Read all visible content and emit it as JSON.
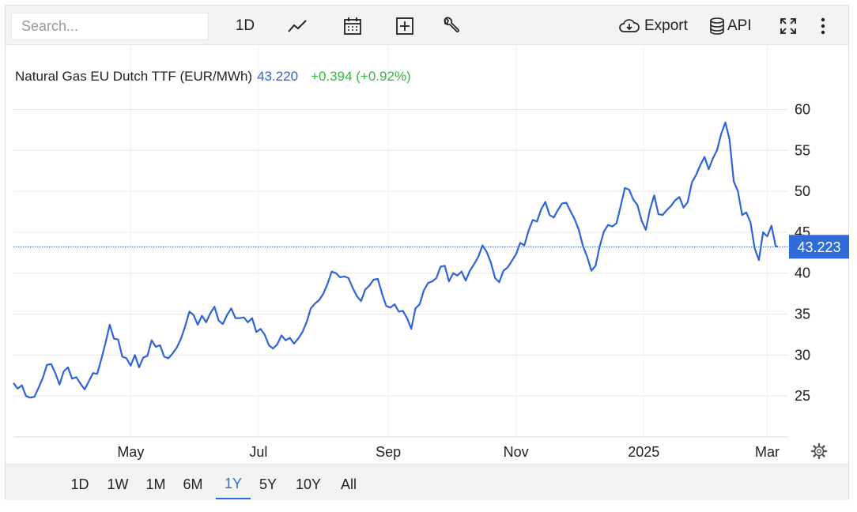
{
  "toolbar": {
    "search_placeholder": "Search...",
    "interval_label": "1D",
    "export_label": "Export",
    "api_label": "API"
  },
  "ranges": [
    "1D",
    "1W",
    "1M",
    "6M",
    "1Y",
    "5Y",
    "10Y",
    "All"
  ],
  "active_range": "1Y",
  "colors": {
    "line": "#2f64d6",
    "price": "#2f64d6",
    "change": "#39b53f",
    "badge_bg": "#2f6bd8",
    "badge_text": "#ffffff"
  },
  "icons": [
    "line-chart-icon",
    "calendar-icon",
    "plus-box-icon",
    "wrench-icon",
    "cloud-download-icon",
    "database-icon",
    "fullscreen-icon",
    "more-vertical-icon",
    "gear-icon"
  ],
  "chart_data": {
    "type": "line",
    "title": "Natural Gas EU Dutch TTF (EUR/MWh)",
    "last_value_label": "43.220",
    "change_label": "+0.394 (+0.92%)",
    "current_price_label": "43.223",
    "current_price": 43.223,
    "ylim": [
      20,
      64
    ],
    "yticks": [
      25,
      30,
      35,
      40,
      45,
      50,
      55,
      60
    ],
    "x_ticks": [
      {
        "label": "May",
        "date": "2024-05-01"
      },
      {
        "label": "Jul",
        "date": "2024-07-01"
      },
      {
        "label": "Sep",
        "date": "2024-09-01"
      },
      {
        "label": "Nov",
        "date": "2024-11-01"
      },
      {
        "label": "2025",
        "date": "2025-01-01"
      },
      {
        "label": "Mar",
        "date": "2025-03-01"
      }
    ],
    "xlim": [
      "2024-03-06",
      "2025-03-11"
    ],
    "grid": true,
    "series": [
      {
        "values": [
          [
            "2024-03-06",
            26.6
          ],
          [
            "2024-03-08",
            25.9
          ],
          [
            "2024-03-10",
            26.3
          ],
          [
            "2024-03-12",
            25.0
          ],
          [
            "2024-03-14",
            24.8
          ],
          [
            "2024-03-16",
            24.9
          ],
          [
            "2024-03-18",
            26.0
          ],
          [
            "2024-03-20",
            27.2
          ],
          [
            "2024-03-22",
            28.8
          ],
          [
            "2024-03-24",
            28.9
          ],
          [
            "2024-03-26",
            27.8
          ],
          [
            "2024-03-28",
            26.4
          ],
          [
            "2024-03-30",
            28.0
          ],
          [
            "2024-04-01",
            28.5
          ],
          [
            "2024-04-03",
            27.1
          ],
          [
            "2024-04-05",
            27.3
          ],
          [
            "2024-04-07",
            26.5
          ],
          [
            "2024-04-09",
            25.8
          ],
          [
            "2024-04-11",
            26.8
          ],
          [
            "2024-04-13",
            27.8
          ],
          [
            "2024-04-15",
            27.7
          ],
          [
            "2024-04-17",
            29.5
          ],
          [
            "2024-04-19",
            31.5
          ],
          [
            "2024-04-21",
            33.7
          ],
          [
            "2024-04-23",
            32.0
          ],
          [
            "2024-04-25",
            31.9
          ],
          [
            "2024-04-27",
            29.8
          ],
          [
            "2024-04-29",
            29.6
          ],
          [
            "2024-05-01",
            28.7
          ],
          [
            "2024-05-03",
            30.0
          ],
          [
            "2024-05-05",
            28.5
          ],
          [
            "2024-05-07",
            29.7
          ],
          [
            "2024-05-09",
            29.9
          ],
          [
            "2024-05-11",
            31.8
          ],
          [
            "2024-05-13",
            31.0
          ],
          [
            "2024-05-15",
            31.2
          ],
          [
            "2024-05-17",
            29.8
          ],
          [
            "2024-05-19",
            29.6
          ],
          [
            "2024-05-21",
            30.2
          ],
          [
            "2024-05-23",
            30.9
          ],
          [
            "2024-05-25",
            32.0
          ],
          [
            "2024-05-27",
            33.5
          ],
          [
            "2024-05-29",
            35.3
          ],
          [
            "2024-05-31",
            34.9
          ],
          [
            "2024-06-02",
            33.7
          ],
          [
            "2024-06-04",
            34.8
          ],
          [
            "2024-06-06",
            34.0
          ],
          [
            "2024-06-08",
            35.1
          ],
          [
            "2024-06-10",
            35.9
          ],
          [
            "2024-06-12",
            34.2
          ],
          [
            "2024-06-14",
            33.8
          ],
          [
            "2024-06-16",
            34.9
          ],
          [
            "2024-06-18",
            35.7
          ],
          [
            "2024-06-20",
            34.5
          ],
          [
            "2024-06-22",
            34.5
          ],
          [
            "2024-06-24",
            34.6
          ],
          [
            "2024-06-26",
            34.0
          ],
          [
            "2024-06-28",
            34.5
          ],
          [
            "2024-06-30",
            32.8
          ],
          [
            "2024-07-02",
            33.2
          ],
          [
            "2024-07-04",
            32.5
          ],
          [
            "2024-07-06",
            31.2
          ],
          [
            "2024-07-08",
            30.8
          ],
          [
            "2024-07-10",
            31.3
          ],
          [
            "2024-07-12",
            32.4
          ],
          [
            "2024-07-14",
            31.8
          ],
          [
            "2024-07-16",
            32.1
          ],
          [
            "2024-07-18",
            31.4
          ],
          [
            "2024-07-20",
            32.0
          ],
          [
            "2024-07-22",
            32.8
          ],
          [
            "2024-07-24",
            34.0
          ],
          [
            "2024-07-26",
            35.7
          ],
          [
            "2024-07-28",
            36.3
          ],
          [
            "2024-07-30",
            36.7
          ],
          [
            "2024-08-01",
            37.5
          ],
          [
            "2024-08-03",
            38.7
          ],
          [
            "2024-08-05",
            40.2
          ],
          [
            "2024-08-07",
            40.0
          ],
          [
            "2024-08-09",
            39.5
          ],
          [
            "2024-08-11",
            39.6
          ],
          [
            "2024-08-13",
            39.4
          ],
          [
            "2024-08-15",
            38.2
          ],
          [
            "2024-08-17",
            37.2
          ],
          [
            "2024-08-19",
            36.6
          ],
          [
            "2024-08-21",
            38.0
          ],
          [
            "2024-08-23",
            38.5
          ],
          [
            "2024-08-25",
            39.2
          ],
          [
            "2024-08-27",
            39.3
          ],
          [
            "2024-08-29",
            37.5
          ],
          [
            "2024-08-31",
            36.0
          ],
          [
            "2024-09-02",
            35.8
          ],
          [
            "2024-09-04",
            36.2
          ],
          [
            "2024-09-06",
            35.3
          ],
          [
            "2024-09-08",
            35.4
          ],
          [
            "2024-09-10",
            34.5
          ],
          [
            "2024-09-12",
            33.2
          ],
          [
            "2024-09-14",
            35.7
          ],
          [
            "2024-09-16",
            36.2
          ],
          [
            "2024-09-18",
            37.9
          ],
          [
            "2024-09-20",
            38.8
          ],
          [
            "2024-09-22",
            39.0
          ],
          [
            "2024-09-24",
            39.4
          ],
          [
            "2024-09-26",
            40.8
          ],
          [
            "2024-09-28",
            40.9
          ],
          [
            "2024-09-30",
            39.0
          ],
          [
            "2024-10-02",
            40.0
          ],
          [
            "2024-10-04",
            39.7
          ],
          [
            "2024-10-06",
            40.2
          ],
          [
            "2024-10-08",
            39.1
          ],
          [
            "2024-10-10",
            40.3
          ],
          [
            "2024-10-12",
            41.1
          ],
          [
            "2024-10-14",
            42.0
          ],
          [
            "2024-10-16",
            43.4
          ],
          [
            "2024-10-18",
            42.6
          ],
          [
            "2024-10-20",
            41.3
          ],
          [
            "2024-10-22",
            39.4
          ],
          [
            "2024-10-24",
            38.9
          ],
          [
            "2024-10-26",
            40.3
          ],
          [
            "2024-10-28",
            40.7
          ],
          [
            "2024-10-30",
            41.5
          ],
          [
            "2024-11-01",
            42.3
          ],
          [
            "2024-11-03",
            43.7
          ],
          [
            "2024-11-05",
            43.4
          ],
          [
            "2024-11-07",
            45.2
          ],
          [
            "2024-11-09",
            46.5
          ],
          [
            "2024-11-11",
            46.3
          ],
          [
            "2024-11-13",
            47.8
          ],
          [
            "2024-11-15",
            48.7
          ],
          [
            "2024-11-17",
            47.1
          ],
          [
            "2024-11-19",
            46.8
          ],
          [
            "2024-11-21",
            47.7
          ],
          [
            "2024-11-23",
            48.5
          ],
          [
            "2024-11-25",
            48.6
          ],
          [
            "2024-11-27",
            47.6
          ],
          [
            "2024-11-29",
            46.6
          ],
          [
            "2024-12-01",
            45.3
          ],
          [
            "2024-12-03",
            43.3
          ],
          [
            "2024-12-05",
            42.0
          ],
          [
            "2024-12-07",
            40.3
          ],
          [
            "2024-12-09",
            40.9
          ],
          [
            "2024-12-11",
            43.3
          ],
          [
            "2024-12-13",
            45.1
          ],
          [
            "2024-12-15",
            45.9
          ],
          [
            "2024-12-17",
            45.7
          ],
          [
            "2024-12-19",
            46.1
          ],
          [
            "2024-12-21",
            48.2
          ],
          [
            "2024-12-23",
            50.4
          ],
          [
            "2024-12-25",
            50.2
          ],
          [
            "2024-12-27",
            49.0
          ],
          [
            "2024-12-29",
            48.3
          ],
          [
            "2024-12-31",
            46.4
          ],
          [
            "2025-01-02",
            45.3
          ],
          [
            "2025-01-04",
            47.8
          ],
          [
            "2025-01-06",
            49.5
          ],
          [
            "2025-01-08",
            47.2
          ],
          [
            "2025-01-10",
            47.1
          ],
          [
            "2025-01-12",
            47.7
          ],
          [
            "2025-01-14",
            48.2
          ],
          [
            "2025-01-16",
            48.9
          ],
          [
            "2025-01-18",
            49.3
          ],
          [
            "2025-01-20",
            48.0
          ],
          [
            "2025-01-22",
            48.7
          ],
          [
            "2025-01-24",
            51.1
          ],
          [
            "2025-01-26",
            52.0
          ],
          [
            "2025-01-28",
            53.2
          ],
          [
            "2025-01-30",
            54.2
          ],
          [
            "2025-02-01",
            52.7
          ],
          [
            "2025-02-03",
            54.0
          ],
          [
            "2025-02-05",
            55.0
          ],
          [
            "2025-02-07",
            57.0
          ],
          [
            "2025-02-09",
            58.4
          ],
          [
            "2025-02-11",
            56.3
          ],
          [
            "2025-02-13",
            51.2
          ],
          [
            "2025-02-15",
            50.0
          ],
          [
            "2025-02-17",
            47.1
          ],
          [
            "2025-02-19",
            47.4
          ],
          [
            "2025-02-21",
            46.2
          ],
          [
            "2025-02-23",
            43.0
          ],
          [
            "2025-02-25",
            41.6
          ],
          [
            "2025-02-27",
            45.0
          ],
          [
            "2025-03-01",
            44.5
          ],
          [
            "2025-03-03",
            45.8
          ],
          [
            "2025-03-05",
            43.3
          ],
          [
            "2025-03-06",
            43.22
          ]
        ]
      }
    ]
  }
}
